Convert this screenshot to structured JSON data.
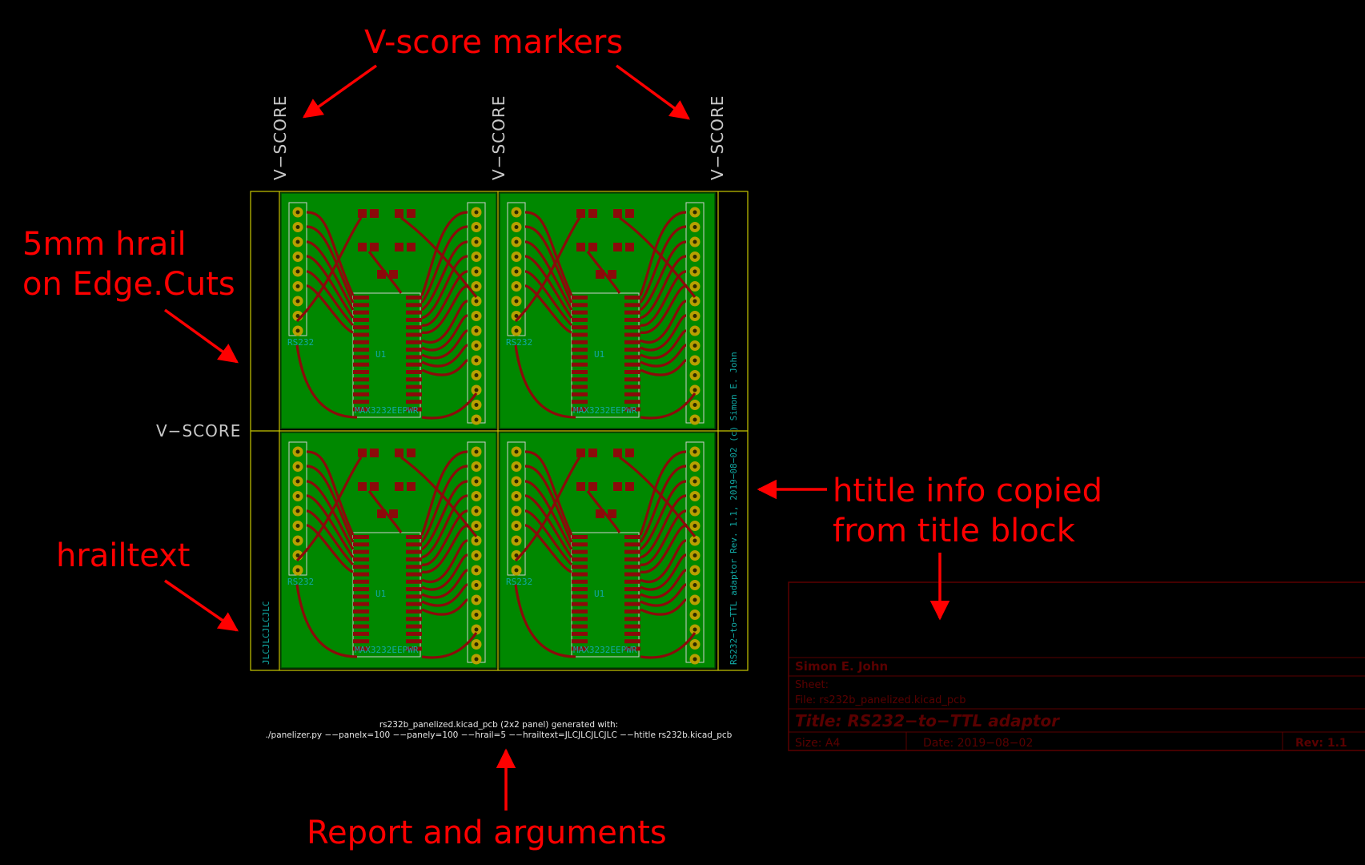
{
  "annotations": {
    "vscore_markers": "V-score markers",
    "hrail_line1": "5mm hrail",
    "hrail_line2": "on Edge.Cuts",
    "hrailtext": "hrailtext",
    "htitle_line1": "htitle info copied",
    "htitle_line2": "from title block",
    "report": "Report and arguments"
  },
  "vscore_label": "V−SCORE",
  "rail": {
    "left_text": "JLCJLCJLCJLC",
    "right_text": "RS232−to−TTL adaptor Rev. 1.1, 2019−08−02 (c) Simon E. John"
  },
  "report": {
    "line1": "rs232b_panelized.kicad_pcb (2x2 panel) generated with:",
    "line2": "./panelizer.py −−panelx=100 −−panely=100 −−hrail=5 −−hrailtext=JLCJLCJLCJLC −−htitle rs232b.kicad_pcb"
  },
  "board": {
    "ic_label": "MAX3232EEPWR",
    "conn_label": "RS232",
    "u_label": "U1"
  },
  "title_block": {
    "company": "Simon E. John",
    "sheet": "Sheet:",
    "file": "File: rs232b_panelized.kicad_pcb",
    "title": "Title: RS232−to−TTL adaptor",
    "size": "Size: A4",
    "date": "Date: 2019−08−02",
    "rev": "Rev: 1.1"
  },
  "colors": {
    "annotation": "#ff0000",
    "board": "#008800",
    "copper": "#8b0a0a",
    "edge_cuts": "#c8c800",
    "silk": "#11a9a4",
    "title_block": "#5a0000"
  }
}
